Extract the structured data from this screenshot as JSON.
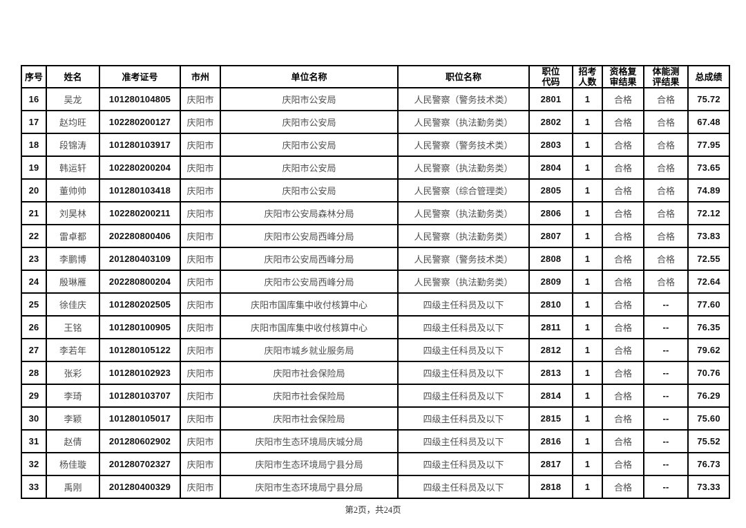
{
  "page": {
    "footer_text": "第2页，共24页",
    "colors": {
      "border": "#000000",
      "header_text": "#000000",
      "numeric_text": "#111111",
      "cjk_text": "#4f4f4f"
    }
  },
  "table": {
    "headers": [
      "序号",
      "姓名",
      "准考证号",
      "市州",
      "单位名称",
      "职位名称",
      "职位\n代码",
      "招考\n人数",
      "资格复\n审结果",
      "体能测\n评结果",
      "总成绩"
    ],
    "column_keys": [
      "no",
      "name",
      "ticket",
      "city",
      "org",
      "position",
      "code",
      "recruits",
      "qualification",
      "fitness",
      "score"
    ],
    "rows": [
      {
        "no": "16",
        "name": "吴龙",
        "ticket": "101280104805",
        "city": "庆阳市",
        "org": "庆阳市公安局",
        "position": "人民警察（警务技术类）",
        "code": "2801",
        "recruits": "1",
        "qualification": "合格",
        "fitness": "合格",
        "score": "75.72"
      },
      {
        "no": "17",
        "name": "赵均旺",
        "ticket": "102280200127",
        "city": "庆阳市",
        "org": "庆阳市公安局",
        "position": "人民警察（执法勤务类）",
        "code": "2802",
        "recruits": "1",
        "qualification": "合格",
        "fitness": "合格",
        "score": "67.48"
      },
      {
        "no": "18",
        "name": "段锦涛",
        "ticket": "101280103917",
        "city": "庆阳市",
        "org": "庆阳市公安局",
        "position": "人民警察（警务技术类）",
        "code": "2803",
        "recruits": "1",
        "qualification": "合格",
        "fitness": "合格",
        "score": "77.95"
      },
      {
        "no": "19",
        "name": "韩运轩",
        "ticket": "102280200204",
        "city": "庆阳市",
        "org": "庆阳市公安局",
        "position": "人民警察（执法勤务类）",
        "code": "2804",
        "recruits": "1",
        "qualification": "合格",
        "fitness": "合格",
        "score": "73.65"
      },
      {
        "no": "20",
        "name": "董帅帅",
        "ticket": "101280103418",
        "city": "庆阳市",
        "org": "庆阳市公安局",
        "position": "人民警察（综合管理类）",
        "code": "2805",
        "recruits": "1",
        "qualification": "合格",
        "fitness": "合格",
        "score": "74.89"
      },
      {
        "no": "21",
        "name": "刘昊林",
        "ticket": "102280200211",
        "city": "庆阳市",
        "org": "庆阳市公安局森林分局",
        "position": "人民警察（执法勤务类）",
        "code": "2806",
        "recruits": "1",
        "qualification": "合格",
        "fitness": "合格",
        "score": "72.12"
      },
      {
        "no": "22",
        "name": "雷卓都",
        "ticket": "202280800406",
        "city": "庆阳市",
        "org": "庆阳市公安局西峰分局",
        "position": "人民警察（执法勤务类）",
        "code": "2807",
        "recruits": "1",
        "qualification": "合格",
        "fitness": "合格",
        "score": "73.83"
      },
      {
        "no": "23",
        "name": "李鹏博",
        "ticket": "201280403109",
        "city": "庆阳市",
        "org": "庆阳市公安局西峰分局",
        "position": "人民警察（警务技术类）",
        "code": "2808",
        "recruits": "1",
        "qualification": "合格",
        "fitness": "合格",
        "score": "72.55"
      },
      {
        "no": "24",
        "name": "殷琳雁",
        "ticket": "202280800204",
        "city": "庆阳市",
        "org": "庆阳市公安局西峰分局",
        "position": "人民警察（执法勤务类）",
        "code": "2809",
        "recruits": "1",
        "qualification": "合格",
        "fitness": "合格",
        "score": "72.64"
      },
      {
        "no": "25",
        "name": "徐佳庆",
        "ticket": "101280202505",
        "city": "庆阳市",
        "org": "庆阳市国库集中收付核算中心",
        "position": "四级主任科员及以下",
        "code": "2810",
        "recruits": "1",
        "qualification": "合格",
        "fitness": "--",
        "score": "77.60"
      },
      {
        "no": "26",
        "name": "王铭",
        "ticket": "101280100905",
        "city": "庆阳市",
        "org": "庆阳市国库集中收付核算中心",
        "position": "四级主任科员及以下",
        "code": "2811",
        "recruits": "1",
        "qualification": "合格",
        "fitness": "--",
        "score": "76.35"
      },
      {
        "no": "27",
        "name": "李若年",
        "ticket": "101280105122",
        "city": "庆阳市",
        "org": "庆阳市城乡就业服务局",
        "position": "四级主任科员及以下",
        "code": "2812",
        "recruits": "1",
        "qualification": "合格",
        "fitness": "--",
        "score": "79.62"
      },
      {
        "no": "28",
        "name": "张彩",
        "ticket": "101280102923",
        "city": "庆阳市",
        "org": "庆阳市社会保险局",
        "position": "四级主任科员及以下",
        "code": "2813",
        "recruits": "1",
        "qualification": "合格",
        "fitness": "--",
        "score": "70.76"
      },
      {
        "no": "29",
        "name": "李琦",
        "ticket": "101280103707",
        "city": "庆阳市",
        "org": "庆阳市社会保险局",
        "position": "四级主任科员及以下",
        "code": "2814",
        "recruits": "1",
        "qualification": "合格",
        "fitness": "--",
        "score": "76.29"
      },
      {
        "no": "30",
        "name": "李颖",
        "ticket": "101280105017",
        "city": "庆阳市",
        "org": "庆阳市社会保险局",
        "position": "四级主任科员及以下",
        "code": "2815",
        "recruits": "1",
        "qualification": "合格",
        "fitness": "--",
        "score": "75.60"
      },
      {
        "no": "31",
        "name": "赵倩",
        "ticket": "201280602902",
        "city": "庆阳市",
        "org": "庆阳市生态环境局庆城分局",
        "position": "四级主任科员及以下",
        "code": "2816",
        "recruits": "1",
        "qualification": "合格",
        "fitness": "--",
        "score": "75.52"
      },
      {
        "no": "32",
        "name": "杨佳璇",
        "ticket": "201280702327",
        "city": "庆阳市",
        "org": "庆阳市生态环境局宁县分局",
        "position": "四级主任科员及以下",
        "code": "2817",
        "recruits": "1",
        "qualification": "合格",
        "fitness": "--",
        "score": "76.73"
      },
      {
        "no": "33",
        "name": "禹刚",
        "ticket": "201280400329",
        "city": "庆阳市",
        "org": "庆阳市生态环境局宁县分局",
        "position": "四级主任科员及以下",
        "code": "2818",
        "recruits": "1",
        "qualification": "合格",
        "fitness": "--",
        "score": "73.33"
      }
    ]
  }
}
